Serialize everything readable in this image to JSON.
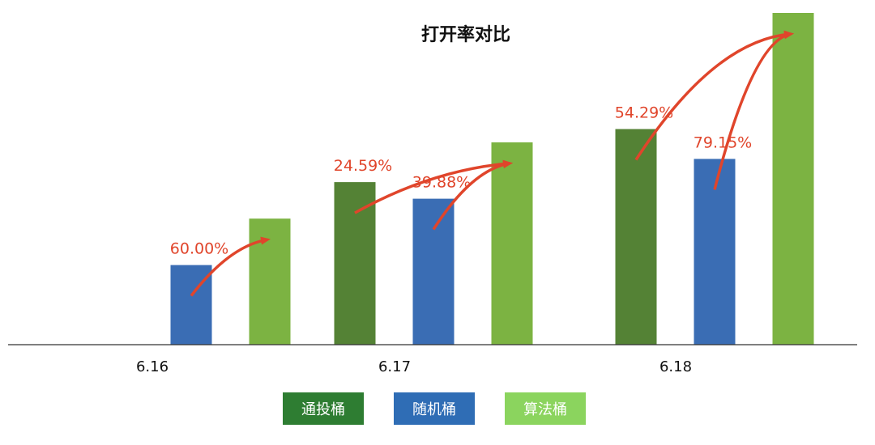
{
  "chart_data": {
    "type": "bar",
    "title": "打开率对比",
    "xlabel": "",
    "ylabel": "",
    "categories": [
      "6.16",
      "6.17",
      "6.18"
    ],
    "ylim": [
      0,
      1
    ],
    "grid": false,
    "legend_position": "bottom",
    "series": [
      {
        "name": "通投桶",
        "color": "#548235",
        "values": [
          null,
          0.49,
          0.65
        ]
      },
      {
        "name": "随机桶",
        "color": "#3A6DB4",
        "values": [
          0.24,
          0.44,
          0.56
        ]
      },
      {
        "name": "算法桶",
        "color": "#7CB342",
        "values": [
          0.38,
          0.61,
          1.0
        ]
      }
    ],
    "annotations": [
      {
        "category": "6.16",
        "text": "60.00%",
        "from_series": "随机桶",
        "to_series": "算法桶"
      },
      {
        "category": "6.17",
        "text": "24.59%",
        "from_series": "通投桶",
        "to_series": "算法桶"
      },
      {
        "category": "6.17",
        "text": "39.88%",
        "from_series": "随机桶",
        "to_series": "算法桶"
      },
      {
        "category": "6.18",
        "text": "54.29%",
        "from_series": "通投桶",
        "to_series": "算法桶"
      },
      {
        "category": "6.18",
        "text": "79.15%",
        "from_series": "随机桶",
        "to_series": "算法桶"
      }
    ],
    "annotation_color": "#E0452B",
    "axis_color": "#333333",
    "legend_colors": [
      "#2E7D32",
      "#2F6DB5",
      "#8BD45E"
    ]
  }
}
